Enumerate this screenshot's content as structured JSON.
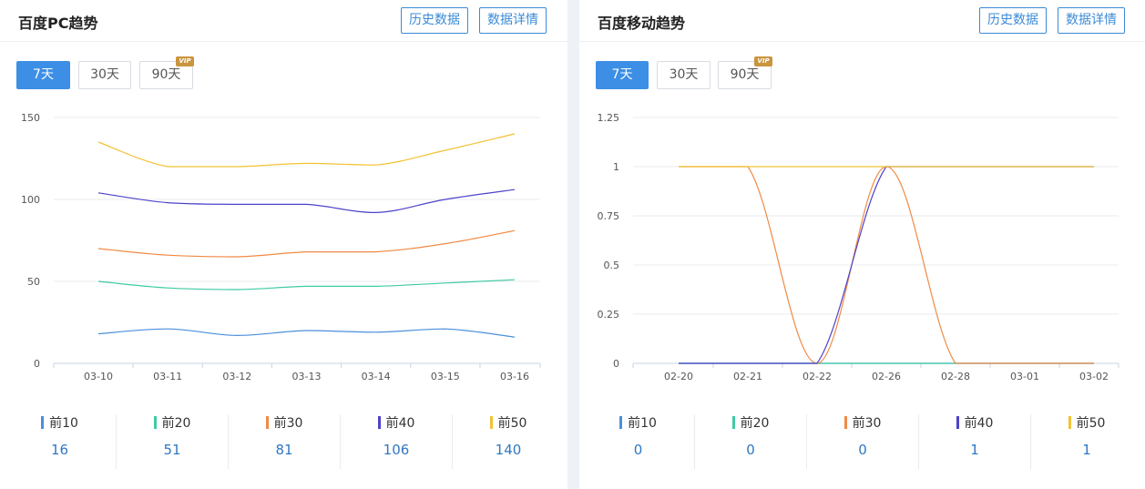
{
  "panels": [
    {
      "title": "百度PC趋势",
      "history_label": "历史数据",
      "detail_label": "数据详情",
      "ranges": [
        "7天",
        "30天",
        "90天"
      ],
      "active_range": "7天",
      "vip_label": "VIP"
    },
    {
      "title": "百度移动趋势",
      "history_label": "历史数据",
      "detail_label": "数据详情",
      "ranges": [
        "7天",
        "30天",
        "90天"
      ],
      "active_range": "7天",
      "vip_label": "VIP"
    }
  ],
  "colors": {
    "前10": "#4a8fdc",
    "前20": "#3fcaa3",
    "前30": "#f08a45",
    "前40": "#4d43c9",
    "前50": "#f2c233"
  },
  "chart_data": [
    {
      "type": "line",
      "title": "百度PC趋势",
      "categories": [
        "03-10",
        "03-11",
        "03-12",
        "03-13",
        "03-14",
        "03-15",
        "03-16"
      ],
      "ylim": [
        0,
        150
      ],
      "yticks": [
        "0",
        "50",
        "100",
        "150"
      ],
      "grid": true,
      "series": [
        {
          "name": "前10",
          "values": [
            18,
            21,
            17,
            20,
            19,
            21,
            16
          ]
        },
        {
          "name": "前20",
          "values": [
            50,
            46,
            45,
            47,
            47,
            49,
            51
          ]
        },
        {
          "name": "前30",
          "values": [
            70,
            66,
            65,
            68,
            68,
            73,
            81
          ]
        },
        {
          "name": "前40",
          "values": [
            104,
            98,
            97,
            97,
            92,
            100,
            106
          ]
        },
        {
          "name": "前50",
          "values": [
            135,
            120,
            120,
            122,
            121,
            130,
            140
          ]
        }
      ],
      "summary": [
        {
          "label": "前10",
          "value": "16"
        },
        {
          "label": "前20",
          "value": "51"
        },
        {
          "label": "前30",
          "value": "81"
        },
        {
          "label": "前40",
          "value": "106"
        },
        {
          "label": "前50",
          "value": "140"
        }
      ]
    },
    {
      "type": "line",
      "title": "百度移动趋势",
      "categories": [
        "02-20",
        "02-21",
        "02-22",
        "02-26",
        "02-28",
        "03-01",
        "03-02"
      ],
      "ylim": [
        0,
        1.25
      ],
      "yticks": [
        "0",
        "0.25",
        "0.5",
        "0.75",
        "1",
        "1.25"
      ],
      "grid": true,
      "series": [
        {
          "name": "前10",
          "values": [
            0,
            0,
            0,
            0,
            0,
            0,
            0
          ]
        },
        {
          "name": "前20",
          "values": [
            0,
            0,
            0,
            0,
            0,
            0,
            0
          ]
        },
        {
          "name": "前30",
          "values": [
            1,
            1,
            0,
            1,
            0,
            0,
            0
          ]
        },
        {
          "name": "前40",
          "values": [
            0,
            0,
            0,
            1,
            1,
            1,
            1
          ]
        },
        {
          "name": "前50",
          "values": [
            1,
            1,
            1,
            1,
            1,
            1,
            1
          ]
        }
      ],
      "summary": [
        {
          "label": "前10",
          "value": "0"
        },
        {
          "label": "前20",
          "value": "0"
        },
        {
          "label": "前30",
          "value": "0"
        },
        {
          "label": "前40",
          "value": "1"
        },
        {
          "label": "前50",
          "value": "1"
        }
      ]
    }
  ]
}
